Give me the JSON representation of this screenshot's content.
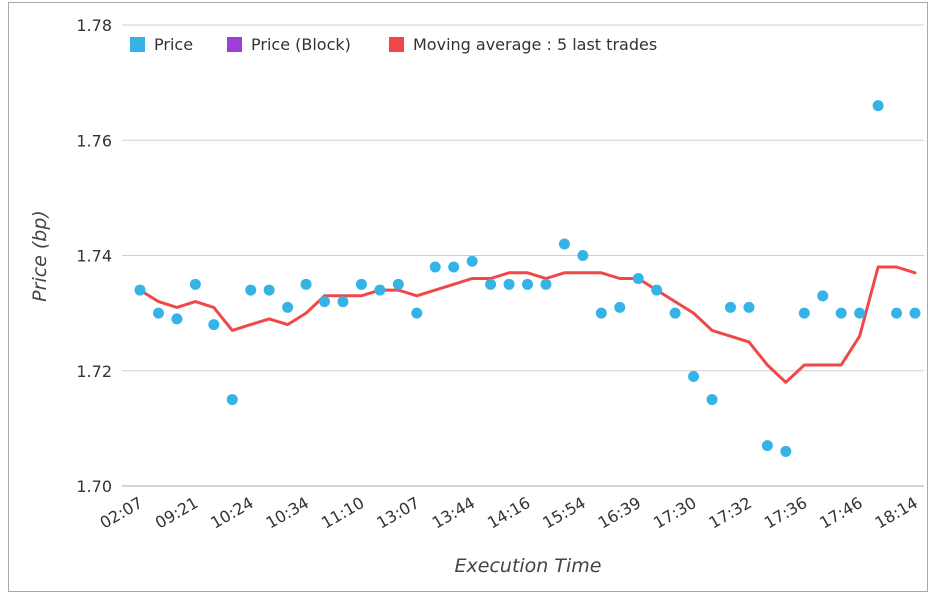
{
  "chart_data": {
    "type": "scatter",
    "xlabel": "Execution Time",
    "ylabel": "Price (bp)",
    "ylim": [
      1.7,
      1.78
    ],
    "yticks": [
      "1.70",
      "1.72",
      "1.74",
      "1.76",
      "1.78"
    ],
    "xtick_labels": [
      "02:07",
      "09:21",
      "10:24",
      "10:34",
      "11:10",
      "13:07",
      "13:44",
      "14:16",
      "15:54",
      "16:39",
      "17:30",
      "17:32",
      "17:36",
      "17:46",
      "18:14"
    ],
    "legend_position": "top-left",
    "grid": true,
    "series": [
      {
        "name": "Price",
        "kind": "scatter",
        "color": "#36b3e6",
        "values": [
          1.734,
          1.73,
          1.729,
          1.735,
          1.728,
          1.715,
          1.734,
          1.734,
          1.731,
          1.735,
          1.732,
          1.732,
          1.735,
          1.734,
          1.735,
          1.73,
          1.738,
          1.738,
          1.739,
          1.735,
          1.735,
          1.735,
          1.735,
          1.742,
          1.74,
          1.73,
          1.731,
          1.736,
          1.734,
          1.73,
          1.719,
          1.715,
          1.731,
          1.731,
          1.707,
          1.706,
          1.73,
          1.733,
          1.73,
          1.73,
          1.766,
          1.73,
          1.73
        ]
      },
      {
        "name": "Price (Block)",
        "kind": "scatter",
        "color": "#9b3fd6",
        "values": []
      },
      {
        "name": "Moving average : 5 last trades",
        "kind": "line",
        "color": "#f04848",
        "values": [
          1.734,
          1.732,
          1.731,
          1.732,
          1.731,
          1.727,
          1.728,
          1.729,
          1.728,
          1.73,
          1.733,
          1.733,
          1.733,
          1.734,
          1.734,
          1.733,
          1.734,
          1.735,
          1.736,
          1.736,
          1.737,
          1.737,
          1.736,
          1.737,
          1.737,
          1.737,
          1.736,
          1.736,
          1.734,
          1.732,
          1.73,
          1.727,
          1.726,
          1.725,
          1.721,
          1.718,
          1.721,
          1.721,
          1.721,
          1.726,
          1.738,
          1.738,
          1.737
        ]
      }
    ]
  }
}
